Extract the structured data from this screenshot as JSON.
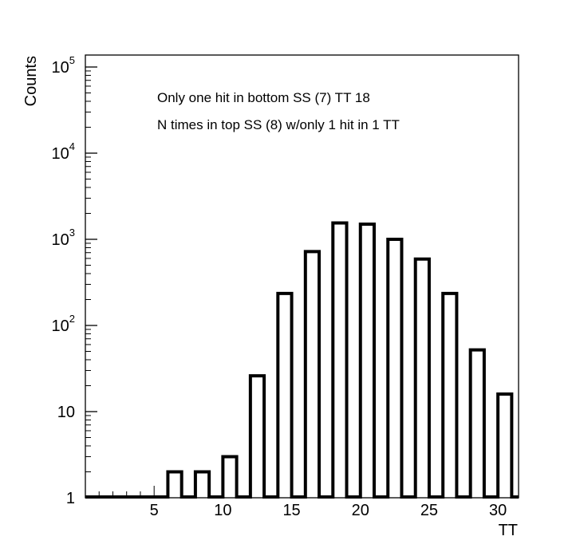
{
  "chart_data": {
    "type": "bar",
    "title": "",
    "xlabel": "TT",
    "ylabel": "Counts",
    "y_scale": "log",
    "ylim": [
      1,
      100000
    ],
    "xlim": [
      0,
      31.5
    ],
    "grid": false,
    "annotations": [
      "Only one hit in bottom SS (7) TT 18",
      "N times in top SS (8) w/only 1 hit in 1 TT"
    ],
    "x_ticks": [
      {
        "value": 5,
        "label": "5"
      },
      {
        "value": 10,
        "label": "10"
      },
      {
        "value": 15,
        "label": "15"
      },
      {
        "value": 20,
        "label": "20"
      },
      {
        "value": 25,
        "label": "25"
      },
      {
        "value": 30,
        "label": "30"
      }
    ],
    "y_ticks": [
      {
        "value": 1,
        "base": "1",
        "exp": ""
      },
      {
        "value": 10,
        "base": "10",
        "exp": ""
      },
      {
        "value": 100,
        "base": "10",
        "exp": "2"
      },
      {
        "value": 1000,
        "base": "10",
        "exp": "3"
      },
      {
        "value": 10000,
        "base": "10",
        "exp": "4"
      },
      {
        "value": 100000,
        "base": "10",
        "exp": "5"
      }
    ],
    "bars": [
      {
        "start": 6,
        "end": 7,
        "value": 2
      },
      {
        "start": 8,
        "end": 9,
        "value": 2
      },
      {
        "start": 10,
        "end": 11,
        "value": 3
      },
      {
        "start": 12,
        "end": 13,
        "value": 26
      },
      {
        "start": 14,
        "end": 15,
        "value": 235
      },
      {
        "start": 16,
        "end": 17,
        "value": 720
      },
      {
        "start": 18,
        "end": 19,
        "value": 1550
      },
      {
        "start": 20,
        "end": 21,
        "value": 1500
      },
      {
        "start": 22,
        "end": 23,
        "value": 1000
      },
      {
        "start": 24,
        "end": 25,
        "value": 590
      },
      {
        "start": 26,
        "end": 27,
        "value": 235
      },
      {
        "start": 28,
        "end": 29,
        "value": 52
      },
      {
        "start": 30,
        "end": 31,
        "value": 16
      }
    ]
  }
}
